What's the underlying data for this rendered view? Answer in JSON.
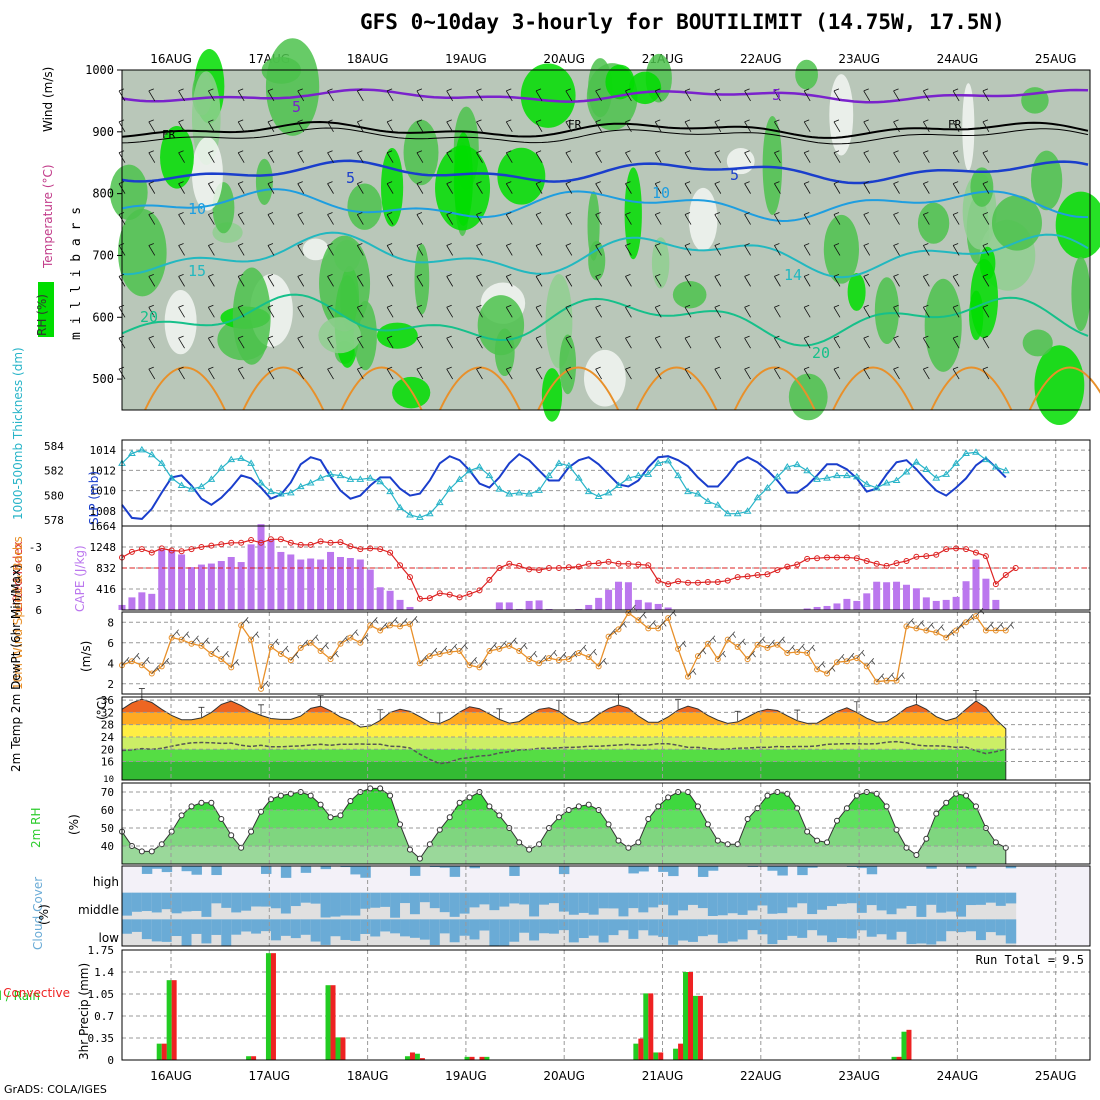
{
  "title": "GFS 0~10day 3-hourly for BOUTILIMIT (14.75W, 17.5N)",
  "footer": "GrADS: COLA/IGES",
  "date_labels": [
    "16AUG",
    "17AUG",
    "18AUG",
    "19AUG",
    "20AUG",
    "21AUG",
    "22AUG",
    "23AUG",
    "24AUG",
    "25AUG"
  ],
  "colors": {
    "rh_dark": "#00dd00",
    "rh_mid": "#4cc24c",
    "rh_light": "#8fcf8f",
    "rh_grey": "#b9c7b9",
    "slp": "#1a3ecc",
    "thickness": "#28b4c8",
    "lifted_index": "#dd2222",
    "cape": "#bb77ee",
    "wind": "#e8902a",
    "precip_total": "#22cc22",
    "precip_conv": "#ee2222",
    "cloud": "#6aabd6",
    "cloud_bg": "#e0e0e0",
    "rh2m": "#2ecc2e"
  },
  "chart_data": [
    {
      "id": "upper-air",
      "type": "heatmap",
      "title": "",
      "ylabel": "m i l l i b a r s",
      "side_labels": {
        "rh": "RH (%)",
        "temperature": "Temperature (°C)",
        "wind": "Wind (m/s)"
      },
      "y_ticks": [
        500,
        600,
        700,
        800,
        900,
        1000
      ],
      "ylim": [
        450,
        1000
      ],
      "contour_labels": [
        "5",
        "5",
        "FR",
        "FR",
        "FR",
        "5",
        "5",
        "10",
        "10",
        "15",
        "14",
        "20",
        "20"
      ]
    },
    {
      "id": "slp-thickness",
      "type": "line",
      "left_label": "1000-500mb Thickness (dm)",
      "right_label": "SLP (mb)",
      "left_ticks": [
        578,
        580,
        582,
        584
      ],
      "right_ticks": [
        1008,
        1010,
        1012,
        1014
      ],
      "left_ylim": [
        577.5,
        584.5
      ],
      "right_ylim": [
        1006.5,
        1015
      ],
      "series": [
        {
          "name": "SLP (mb)",
          "axis": "right",
          "values": [
            1008.6,
            1007.3,
            1007.2,
            1008.2,
            1009.8,
            1011.3,
            1011.5,
            1010.5,
            1009.2,
            1008.6,
            1009.3,
            1010.3,
            1011.5,
            1011.2,
            1010.3,
            1009.2,
            1009.6,
            1010.8,
            1012.6,
            1013.3,
            1013.0,
            1011.4,
            1010.0,
            1009.2,
            1009.5,
            1010.5,
            1011.3,
            1011.3,
            1010.2,
            1009.5,
            1009.7,
            1011.0,
            1012.7,
            1013.4,
            1013.0,
            1012.0,
            1010.7,
            1010.3,
            1011.3,
            1012.7,
            1013.6,
            1013.0,
            1012.0,
            1011.0,
            1011.0,
            1012.3,
            1013.0,
            1013.3,
            1012.6,
            1011.6,
            1010.6,
            1010.4,
            1011.0,
            1012.3,
            1013.3,
            1013.4,
            1013.0,
            1012.4,
            1011.3,
            1010.4,
            1010.4,
            1011.5,
            1012.8,
            1013.3,
            1012.8,
            1012.0,
            1011.0,
            1009.8,
            1009.8,
            1010.5,
            1011.5,
            1012.6,
            1012.6,
            1012.1,
            1011.2,
            1009.9,
            1010.2,
            1011.6,
            1012.8,
            1013.0,
            1012.1,
            1011.0,
            1010.0,
            1009.5,
            1010.3,
            1011.2,
            1012.5,
            1013.2,
            1012.3,
            1011.3
          ]
        },
        {
          "name": "1000-500mb Thickness (dm)",
          "axis": "left",
          "values": [
            582.6,
            583.4,
            583.7,
            583.3,
            582.6,
            581.4,
            580.8,
            580.5,
            580.7,
            581.3,
            582.2,
            582.9,
            583.0,
            582.6,
            581.0,
            580.3,
            580.1,
            580.2,
            580.7,
            581.0,
            581.4,
            581.7,
            581.6,
            581.3,
            581.3,
            581.4,
            581.1,
            580.3,
            579.0,
            578.4,
            578.2,
            578.5,
            579.4,
            580.5,
            581.3,
            582.0,
            582.3,
            581.6,
            580.5,
            580.1,
            580.2,
            580.1,
            580.4,
            581.6,
            582.6,
            582.4,
            581.4,
            580.3,
            579.9,
            580.2,
            580.8,
            581.4,
            581.6,
            581.7,
            582.6,
            582.8,
            581.6,
            580.3,
            580.1,
            579.5,
            579.2,
            578.5,
            578.5,
            578.7,
            579.8,
            580.6,
            581.5,
            582.3,
            582.5,
            582.0,
            581.3,
            581.4,
            581.6,
            581.6,
            581.5,
            580.9,
            580.6,
            581.0,
            581.2,
            581.9,
            582.7,
            582.1,
            581.4,
            581.7,
            582.6,
            583.4,
            583.5,
            582.9,
            582.3,
            582.0
          ]
        }
      ]
    },
    {
      "id": "cape-li",
      "type": "bar",
      "left_label": "Lifted Index",
      "right_label": "CAPE (J/kg)",
      "left_ticks": [
        "-3",
        "0",
        "3",
        "6"
      ],
      "right_ticks": [
        416,
        832,
        1248,
        1664
      ],
      "cape_ylim": [
        0,
        1664
      ],
      "li_ylim": [
        6,
        -6
      ],
      "series": [
        {
          "name": "CAPE (J/kg)",
          "type": "bar",
          "values": [
            100,
            250,
            350,
            320,
            1200,
            1180,
            1100,
            850,
            900,
            920,
            970,
            1050,
            950,
            1300,
            1700,
            1400,
            1150,
            1100,
            1000,
            1020,
            1000,
            1150,
            1050,
            1030,
            1000,
            800,
            450,
            380,
            200,
            60,
            0,
            0,
            0,
            0,
            0,
            0,
            0,
            0,
            150,
            150,
            20,
            180,
            190,
            20,
            10,
            10,
            20,
            100,
            240,
            400,
            560,
            550,
            200,
            150,
            120,
            50,
            0,
            0,
            0,
            0,
            0,
            0,
            0,
            0,
            0,
            0,
            0,
            0,
            0,
            30,
            60,
            80,
            130,
            220,
            180,
            330,
            560,
            550,
            560,
            500,
            430,
            250,
            180,
            200,
            260,
            570,
            1000,
            620,
            200,
            0
          ]
        },
        {
          "name": "Lifted Index",
          "type": "line",
          "values": [
            -1.5,
            -2.3,
            -2.7,
            -2.2,
            -2.8,
            -2.5,
            -2.4,
            -2.7,
            -3.0,
            -3.2,
            -3.4,
            -3.6,
            -3.6,
            -4.0,
            -3.6,
            -4.1,
            -4.1,
            -3.6,
            -3.3,
            -3.3,
            -3.8,
            -3.6,
            -3.7,
            -3.1,
            -2.7,
            -2.8,
            -2.7,
            -2.2,
            -0.4,
            1.3,
            4.4,
            4.3,
            3.6,
            3.8,
            4.2,
            3.7,
            3.2,
            1.7,
            0.0,
            -0.6,
            -0.3,
            0.2,
            0.3,
            0.0,
            0.0,
            -0.1,
            -0.2,
            -0.6,
            -0.7,
            -0.9,
            -0.6,
            -0.6,
            -0.5,
            -0.4,
            1.8,
            2.3,
            1.9,
            2.1,
            2.1,
            2.0,
            2.0,
            1.8,
            1.3,
            1.2,
            1.0,
            0.9,
            0.3,
            -0.2,
            -0.5,
            -1.3,
            -1.4,
            -1.5,
            -1.5,
            -1.5,
            -1.4,
            -1.0,
            -0.6,
            -0.3,
            -0.7,
            -1.0,
            -1.6,
            -1.7,
            -1.9,
            -2.7,
            -2.8,
            -2.7,
            -2.2,
            -1.7,
            2.3,
            1.0,
            0.0
          ]
        }
      ]
    },
    {
      "id": "wind10m",
      "type": "line",
      "left_label": "10m Wind Speed & Barbs",
      "unit_label": "(m/s)",
      "y_ticks": [
        2,
        4,
        6,
        8
      ],
      "ylim": [
        1,
        9
      ],
      "series": [
        {
          "name": "10m Wind Speed",
          "values": [
            3.8,
            4.2,
            3.8,
            3.0,
            3.7,
            6.5,
            6.3,
            5.9,
            5.7,
            4.9,
            4.4,
            3.6,
            7.7,
            6.3,
            1.5,
            5.6,
            4.9,
            4.3,
            5.5,
            6.0,
            5.2,
            4.4,
            5.9,
            6.5,
            6.0,
            7.7,
            7.2,
            7.7,
            7.6,
            7.8,
            4.0,
            4.7,
            4.9,
            5.1,
            5.2,
            3.8,
            3.6,
            5.2,
            5.4,
            5.7,
            5.2,
            4.4,
            4.0,
            4.5,
            4.3,
            4.4,
            5.0,
            4.6,
            3.7,
            6.6,
            7.3,
            8.9,
            8.2,
            7.4,
            7.4,
            8.4,
            5.4,
            2.7,
            4.7,
            5.9,
            4.4,
            6.3,
            5.6,
            4.4,
            5.8,
            5.5,
            5.8,
            5.0,
            5.1,
            5.0,
            3.4,
            3.0,
            4.1,
            4.2,
            4.5,
            3.7,
            2.2,
            2.3,
            2.3,
            7.6,
            7.4,
            7.2,
            7.0,
            6.5,
            7.2,
            8.0,
            8.6,
            7.2,
            7.2,
            7.2
          ]
        }
      ]
    },
    {
      "id": "temp2m",
      "type": "area",
      "left_label": "2m Temp 2m DewPt (6hr Min/Max)",
      "unit_label": "(°C)",
      "y_ticks": [
        16,
        20,
        24,
        28,
        32,
        36
      ],
      "extra_tick": "10",
      "ylim": [
        10,
        37
      ],
      "series": [
        {
          "name": "2m Temp",
          "values": [
            33.0,
            35.1,
            36.3,
            35.2,
            33.0,
            31.0,
            29.6,
            29.6,
            30.2,
            32.0,
            34.6,
            35.7,
            34.2,
            32.3,
            31.0,
            30.0,
            29.7,
            29.7,
            30.8,
            33.3,
            34.0,
            32.5,
            30.5,
            29.3,
            27.2,
            27.6,
            29.4,
            32.0,
            33.0,
            32.3,
            30.6,
            28.8,
            28.4,
            29.8,
            32.1,
            33.8,
            33.2,
            31.5,
            29.7,
            28.5,
            29.0,
            31.1,
            33.0,
            33.5,
            32.4,
            30.1,
            28.5,
            29.0,
            31.4,
            33.3,
            34.4,
            33.4,
            30.8,
            28.8,
            28.8,
            30.5,
            32.8,
            34.0,
            33.1,
            31.0,
            29.5,
            28.4,
            28.9,
            30.5,
            32.2,
            33.0,
            32.6,
            30.9,
            29.3,
            28.4,
            28.5,
            30.4,
            32.3,
            33.5,
            32.0,
            30.1,
            28.8,
            29.0,
            31.0,
            33.5,
            34.6,
            33.0,
            30.6,
            29.3,
            30.2,
            33.0,
            35.7,
            33.6,
            29.7,
            26.7
          ]
        },
        {
          "name": "2m DewPt",
          "values": [
            19.6,
            19.8,
            20.2,
            20.0,
            20.3,
            21.0,
            21.6,
            22.1,
            22.2,
            22.1,
            21.9,
            22.0,
            21.3,
            20.9,
            21.3,
            20.8,
            20.8,
            21.0,
            21.1,
            21.4,
            21.6,
            21.3,
            21.6,
            21.6,
            21.7,
            21.6,
            21.6,
            21.0,
            20.9,
            20.4,
            18.4,
            16.7,
            15.3,
            15.8,
            16.9,
            17.3,
            17.8,
            18.0,
            18.8,
            19.2,
            19.8,
            19.9,
            20.3,
            20.3,
            20.5,
            20.6,
            20.7,
            21.0,
            21.0,
            21.2,
            21.4,
            21.6,
            21.3,
            21.4,
            21.8,
            21.8,
            21.3,
            20.6,
            20.6,
            20.2,
            20.0,
            20.1,
            20.3,
            20.4,
            20.6,
            20.6,
            20.9,
            20.8,
            20.9,
            20.9,
            21.1,
            21.6,
            21.7,
            21.8,
            21.8,
            21.7,
            21.8,
            22.3,
            22.5,
            22.1,
            21.4,
            21.1,
            21.1,
            21.0,
            20.6,
            20.7,
            19.5,
            18.6,
            19.2,
            20.1
          ]
        }
      ]
    },
    {
      "id": "rh2m",
      "type": "area",
      "left_label": "2m RH",
      "unit_label": "(%)",
      "y_ticks": [
        40,
        50,
        60,
        70
      ],
      "ylim": [
        30,
        75
      ],
      "series": [
        {
          "name": "2m RH",
          "values": [
            48,
            40,
            37,
            37,
            41,
            48,
            57,
            62,
            64,
            64,
            55,
            46,
            39,
            48,
            59,
            66,
            68,
            69,
            70,
            68,
            63,
            56,
            57,
            65,
            70,
            72,
            72,
            68,
            52,
            38,
            33,
            41,
            49,
            56,
            64,
            67,
            70,
            62,
            57,
            50,
            42,
            38,
            41,
            50,
            56,
            60,
            62,
            63,
            60,
            52,
            43,
            39,
            42,
            55,
            62,
            67,
            70,
            70,
            62,
            52,
            43,
            41,
            41,
            55,
            61,
            68,
            70,
            69,
            61,
            48,
            43,
            42,
            54,
            61,
            68,
            70,
            69,
            62,
            49,
            39,
            35,
            44,
            58,
            64,
            69,
            68,
            62,
            50,
            42,
            39
          ]
        }
      ]
    },
    {
      "id": "cloud-cover",
      "type": "heatmap",
      "left_label": "Cloud Cover",
      "unit_label": "(%)",
      "rows": [
        "high",
        "middle",
        "low"
      ]
    },
    {
      "id": "precip3h",
      "type": "bar",
      "left_label": "Total / Rain Convective",
      "unit_label": "3hr Precip (mm)",
      "y_ticks": [
        "0",
        "0.35",
        "0.7",
        "1.05",
        "1.4",
        "1.75"
      ],
      "ylim": [
        0,
        1.75
      ],
      "annotation": "Run Total = 9.5",
      "series": [
        {
          "name": "Total",
          "bars": [
            [
              4,
              0.26
            ],
            [
              5,
              1.27
            ],
            [
              13,
              0.06
            ],
            [
              15,
              1.7
            ],
            [
              21,
              1.19
            ],
            [
              22,
              0.36
            ],
            [
              29,
              0.06
            ],
            [
              30,
              0.1
            ],
            [
              35,
              0.05
            ],
            [
              37,
              0.05
            ],
            [
              52,
              0.26
            ],
            [
              53,
              1.06
            ],
            [
              54,
              0.12
            ],
            [
              56,
              0.18
            ],
            [
              57,
              1.4
            ],
            [
              58,
              1.02
            ],
            [
              78,
              0.05
            ],
            [
              79,
              0.45
            ]
          ]
        },
        {
          "name": "Convective",
          "bars": [
            [
              4,
              0.26
            ],
            [
              5,
              1.27
            ],
            [
              13,
              0.06
            ],
            [
              15,
              1.7
            ],
            [
              21,
              1.19
            ],
            [
              22,
              0.36
            ],
            [
              29,
              0.12
            ],
            [
              30,
              0.03
            ],
            [
              35,
              0.05
            ],
            [
              36,
              0.05
            ],
            [
              52,
              0.34
            ],
            [
              53,
              1.06
            ],
            [
              54,
              0.12
            ],
            [
              56,
              0.26
            ],
            [
              57,
              1.4
            ],
            [
              58,
              1.02
            ],
            [
              78,
              0.05
            ],
            [
              79,
              0.48
            ]
          ]
        }
      ]
    }
  ]
}
